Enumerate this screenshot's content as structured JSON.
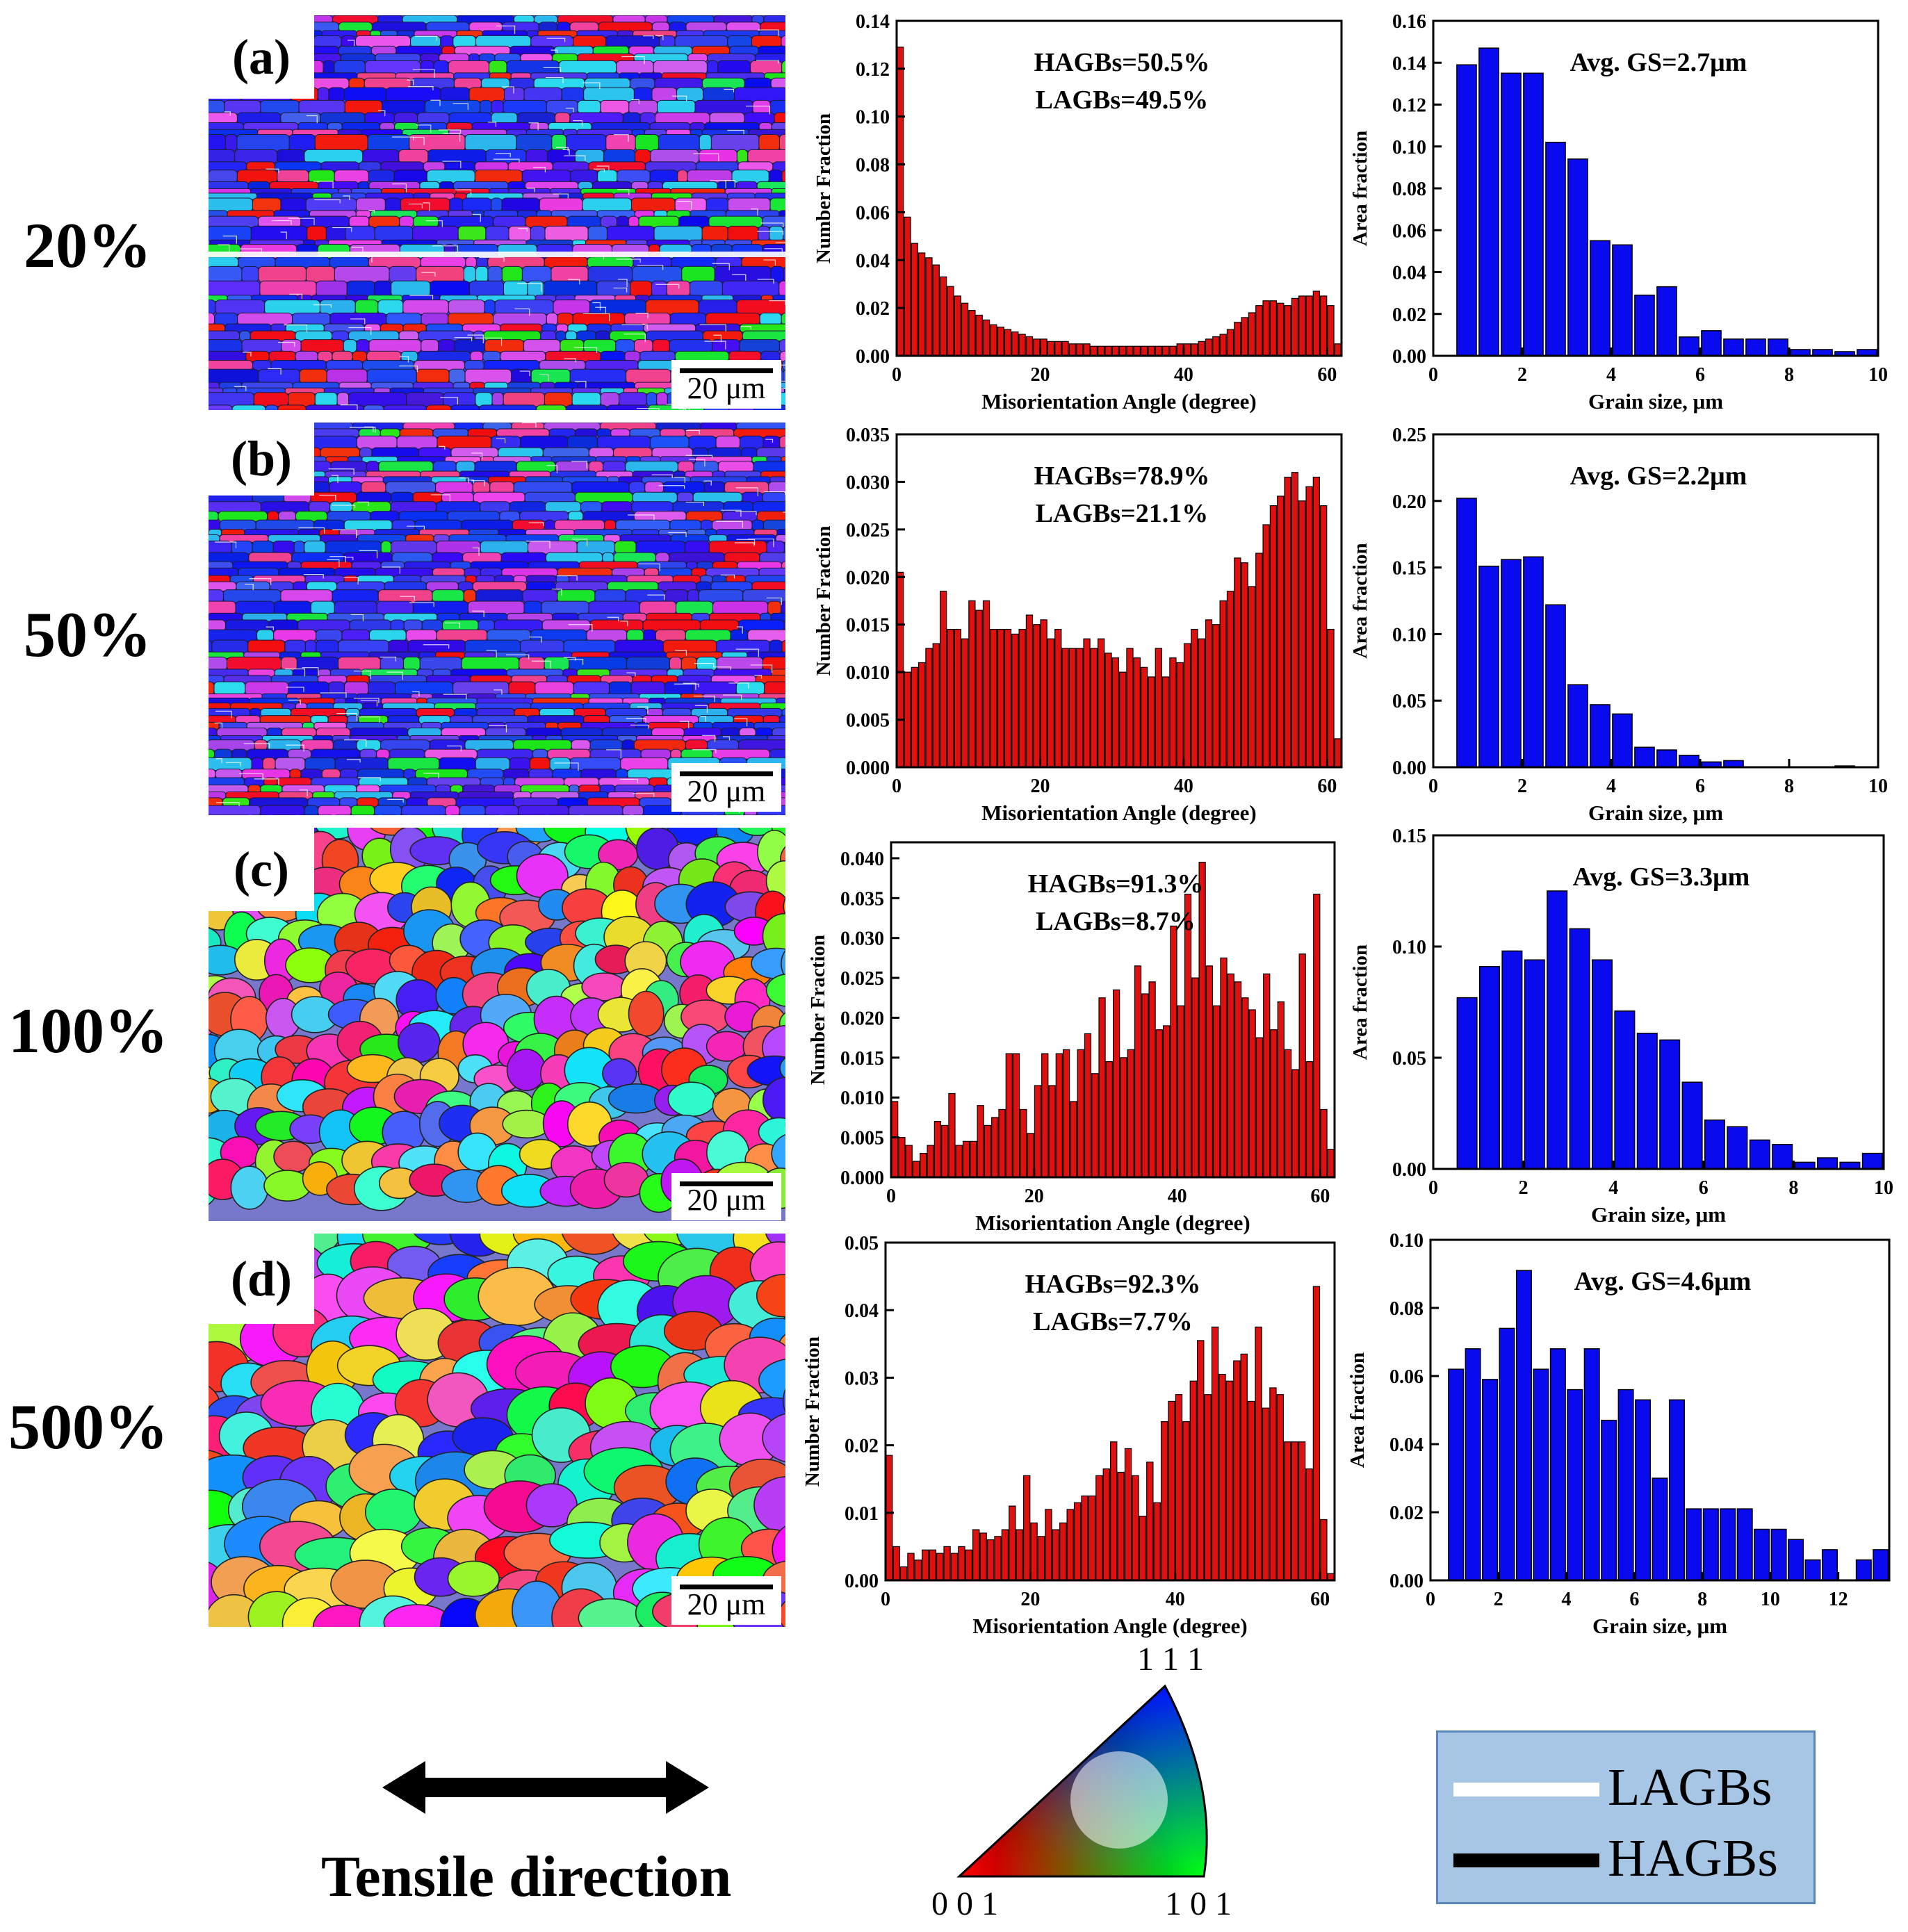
{
  "strain_labels": [
    "20%",
    "50%",
    "100%",
    "500%"
  ],
  "panel_labels": [
    "(a)",
    "(b)",
    "(c)",
    "(d)"
  ],
  "scale_bar_label": "20 μm",
  "colors": {
    "misorientation_bar": "#e01010",
    "grain_bar": "#0a0aee",
    "legend_bg": "#a7c6e6"
  },
  "bottom": {
    "tensile_direction_label": "Tensile direction",
    "ipf_labels": {
      "top": "1 1 1",
      "bottom_left": "0 0 1",
      "bottom_right": "1 0 1"
    },
    "legend": {
      "lagbs": "LAGBs",
      "hagbs": "HAGBs"
    }
  },
  "chart_data": [
    {
      "id": "a-misorientation",
      "type": "bar",
      "xlabel": "Misorientation Angle (degree)",
      "ylabel": "Number Fraction",
      "xlim": [
        0,
        62
      ],
      "ylim": [
        0,
        0.14
      ],
      "xticks": [
        0,
        20,
        40,
        60
      ],
      "yticks": [
        0.0,
        0.02,
        0.04,
        0.06,
        0.08,
        0.1,
        0.12,
        0.14
      ],
      "ytick_decimals": 2,
      "bin_width": 1,
      "annotation": [
        "HAGBs=50.5%",
        "LAGBs=49.5%"
      ],
      "values": [
        0.129,
        0.058,
        0.047,
        0.043,
        0.041,
        0.038,
        0.033,
        0.029,
        0.025,
        0.022,
        0.019,
        0.017,
        0.015,
        0.013,
        0.012,
        0.011,
        0.01,
        0.009,
        0.008,
        0.007,
        0.007,
        0.006,
        0.006,
        0.006,
        0.005,
        0.005,
        0.005,
        0.004,
        0.004,
        0.004,
        0.004,
        0.004,
        0.004,
        0.004,
        0.004,
        0.004,
        0.004,
        0.004,
        0.004,
        0.005,
        0.005,
        0.005,
        0.006,
        0.007,
        0.008,
        0.009,
        0.011,
        0.014,
        0.016,
        0.018,
        0.021,
        0.023,
        0.023,
        0.022,
        0.021,
        0.024,
        0.025,
        0.025,
        0.027,
        0.025,
        0.021,
        0.005
      ]
    },
    {
      "id": "a-grain-size",
      "type": "bar",
      "xlabel": "Grain size, μm",
      "ylabel": "Area fraction",
      "xlim": [
        0,
        10
      ],
      "ylim": [
        0,
        0.16
      ],
      "xticks": [
        0,
        2,
        4,
        6,
        8,
        10
      ],
      "yticks": [
        0.0,
        0.02,
        0.04,
        0.06,
        0.08,
        0.1,
        0.12,
        0.14,
        0.16
      ],
      "ytick_decimals": 2,
      "bin_width": 0.5,
      "annotation": [
        "Avg. GS=2.7μm"
      ],
      "x": [
        0.75,
        1.25,
        1.75,
        2.25,
        2.75,
        3.25,
        3.75,
        4.25,
        4.75,
        5.25,
        5.75,
        6.25,
        6.75,
        7.25,
        7.75,
        8.25,
        8.75,
        9.25,
        9.75
      ],
      "values": [
        0.139,
        0.147,
        0.135,
        0.135,
        0.102,
        0.094,
        0.055,
        0.053,
        0.029,
        0.033,
        0.009,
        0.012,
        0.008,
        0.008,
        0.008,
        0.003,
        0.003,
        0.002,
        0.003
      ]
    },
    {
      "id": "b-misorientation",
      "type": "bar",
      "xlabel": "Misorientation Angle (degree)",
      "ylabel": "Number Fraction",
      "xlim": [
        0,
        62
      ],
      "ylim": [
        0,
        0.035
      ],
      "xticks": [
        0,
        20,
        40,
        60
      ],
      "yticks": [
        0.0,
        0.005,
        0.01,
        0.015,
        0.02,
        0.025,
        0.03,
        0.035
      ],
      "ytick_decimals": 3,
      "bin_width": 1,
      "annotation": [
        "HAGBs=78.9%",
        "LAGBs=21.1%"
      ],
      "values": [
        0.0205,
        0.01,
        0.0105,
        0.011,
        0.0125,
        0.013,
        0.0185,
        0.0145,
        0.0145,
        0.0135,
        0.0175,
        0.0165,
        0.0175,
        0.0145,
        0.0145,
        0.0145,
        0.014,
        0.0145,
        0.016,
        0.015,
        0.0155,
        0.0135,
        0.0145,
        0.0125,
        0.0125,
        0.0125,
        0.0135,
        0.0125,
        0.0135,
        0.012,
        0.0115,
        0.01,
        0.0125,
        0.0115,
        0.0105,
        0.0095,
        0.0125,
        0.0095,
        0.0115,
        0.011,
        0.013,
        0.0145,
        0.0135,
        0.0155,
        0.015,
        0.0175,
        0.0185,
        0.022,
        0.0215,
        0.019,
        0.0225,
        0.0255,
        0.0275,
        0.0285,
        0.0305,
        0.031,
        0.028,
        0.0295,
        0.0305,
        0.0275,
        0.0145,
        0.003
      ]
    },
    {
      "id": "b-grain-size",
      "type": "bar",
      "xlabel": "Grain size, μm",
      "ylabel": "Area fraction",
      "xlim": [
        0,
        10
      ],
      "ylim": [
        0,
        0.25
      ],
      "xticks": [
        0,
        2,
        4,
        6,
        8,
        10
      ],
      "yticks": [
        0.0,
        0.05,
        0.1,
        0.15,
        0.2,
        0.25
      ],
      "ytick_decimals": 2,
      "bin_width": 0.5,
      "annotation": [
        "Avg. GS=2.2μm"
      ],
      "x": [
        0.75,
        1.25,
        1.75,
        2.25,
        2.75,
        3.25,
        3.75,
        4.25,
        4.75,
        5.25,
        5.75,
        6.25,
        6.75,
        7.25,
        7.75,
        8.25,
        8.75,
        9.25,
        9.75
      ],
      "values": [
        0.202,
        0.151,
        0.156,
        0.158,
        0.122,
        0.062,
        0.047,
        0.04,
        0.015,
        0.013,
        0.009,
        0.004,
        0.005,
        0,
        0,
        0,
        0,
        0.001,
        0
      ]
    },
    {
      "id": "c-misorientation",
      "type": "bar",
      "xlabel": "Misorientation Angle (degree)",
      "ylabel": "Number Fraction",
      "xlim": [
        0,
        62
      ],
      "ylim": [
        0,
        0.042
      ],
      "xticks": [
        0,
        20,
        40,
        60
      ],
      "yticks": [
        0.0,
        0.005,
        0.01,
        0.015,
        0.02,
        0.025,
        0.03,
        0.035,
        0.04
      ],
      "ytick_decimals": 3,
      "bin_width": 1,
      "annotation": [
        "HAGBs=91.3%",
        "LAGBs=8.7%"
      ],
      "values": [
        0.0095,
        0.005,
        0.004,
        0.002,
        0.003,
        0.004,
        0.007,
        0.0065,
        0.0105,
        0.004,
        0.0045,
        0.0045,
        0.009,
        0.0065,
        0.0075,
        0.0085,
        0.0155,
        0.0155,
        0.0085,
        0.0055,
        0.0115,
        0.0155,
        0.0115,
        0.0155,
        0.016,
        0.0095,
        0.016,
        0.018,
        0.013,
        0.0225,
        0.0145,
        0.0235,
        0.015,
        0.016,
        0.0265,
        0.023,
        0.0245,
        0.0185,
        0.019,
        0.0315,
        0.0215,
        0.0355,
        0.025,
        0.0395,
        0.0265,
        0.0215,
        0.0275,
        0.0255,
        0.0245,
        0.0225,
        0.021,
        0.0175,
        0.0255,
        0.0185,
        0.022,
        0.016,
        0.0135,
        0.028,
        0.0145,
        0.0355,
        0.0085,
        0.0035
      ]
    },
    {
      "id": "c-grain-size",
      "type": "bar",
      "xlabel": "Grain size, μm",
      "ylabel": "Area fraction",
      "xlim": [
        0,
        10
      ],
      "ylim": [
        0,
        0.15
      ],
      "xticks": [
        0,
        2,
        4,
        6,
        8,
        10
      ],
      "yticks": [
        0.0,
        0.05,
        0.1,
        0.15
      ],
      "ytick_decimals": 2,
      "bin_width": 0.5,
      "annotation": [
        "Avg. GS=3.3μm"
      ],
      "x": [
        0.75,
        1.25,
        1.75,
        2.25,
        2.75,
        3.25,
        3.75,
        4.25,
        4.75,
        5.25,
        5.75,
        6.25,
        6.75,
        7.25,
        7.75,
        8.25,
        8.75,
        9.25,
        9.75
      ],
      "values": [
        0.077,
        0.091,
        0.098,
        0.094,
        0.125,
        0.108,
        0.094,
        0.071,
        0.061,
        0.058,
        0.039,
        0.022,
        0.019,
        0.013,
        0.011,
        0.003,
        0.005,
        0.003,
        0.007
      ]
    },
    {
      "id": "d-misorientation",
      "type": "bar",
      "xlabel": "Misorientation Angle (degree)",
      "ylabel": "Number Fraction",
      "xlim": [
        0,
        62
      ],
      "ylim": [
        0,
        0.05
      ],
      "xticks": [
        0,
        20,
        40,
        60
      ],
      "yticks": [
        0.0,
        0.01,
        0.02,
        0.03,
        0.04,
        0.05
      ],
      "ytick_decimals": 2,
      "bin_width": 1,
      "annotation": [
        "HAGBs=92.3%",
        "LAGBs=7.7%"
      ],
      "values": [
        0.0185,
        0.005,
        0.002,
        0.004,
        0.003,
        0.0045,
        0.0045,
        0.004,
        0.005,
        0.004,
        0.005,
        0.0045,
        0.0075,
        0.007,
        0.006,
        0.0065,
        0.0075,
        0.011,
        0.0075,
        0.0155,
        0.0085,
        0.0065,
        0.0105,
        0.0075,
        0.0085,
        0.0105,
        0.0115,
        0.0125,
        0.0125,
        0.0155,
        0.0165,
        0.0205,
        0.016,
        0.0195,
        0.0155,
        0.0095,
        0.0175,
        0.0115,
        0.0235,
        0.0265,
        0.0275,
        0.0235,
        0.0295,
        0.0355,
        0.0275,
        0.0375,
        0.0305,
        0.0295,
        0.0325,
        0.0335,
        0.0265,
        0.0375,
        0.0255,
        0.0285,
        0.0275,
        0.0205,
        0.0205,
        0.0205,
        0.0165,
        0.0435,
        0.009,
        0.001
      ]
    },
    {
      "id": "d-grain-size",
      "type": "bar",
      "xlabel": "Grain size, μm",
      "ylabel": "Area fraction",
      "xlim": [
        0,
        13.5
      ],
      "ylim": [
        0,
        0.1
      ],
      "xticks": [
        0,
        2,
        4,
        6,
        8,
        10,
        12
      ],
      "yticks": [
        0.0,
        0.02,
        0.04,
        0.06,
        0.08,
        0.1
      ],
      "ytick_decimals": 2,
      "bin_width": 0.5,
      "annotation": [
        "Avg. GS=4.6μm"
      ],
      "x": [
        0.75,
        1.25,
        1.75,
        2.25,
        2.75,
        3.25,
        3.75,
        4.25,
        4.75,
        5.25,
        5.75,
        6.25,
        6.75,
        7.25,
        7.75,
        8.25,
        8.75,
        9.25,
        9.75,
        10.25,
        10.75,
        11.25,
        11.75,
        12.25,
        12.75,
        13.25
      ],
      "values": [
        0.062,
        0.068,
        0.059,
        0.074,
        0.091,
        0.062,
        0.068,
        0.056,
        0.068,
        0.047,
        0.056,
        0.053,
        0.03,
        0.053,
        0.021,
        0.021,
        0.021,
        0.021,
        0.015,
        0.015,
        0.012,
        0.006,
        0.009,
        0,
        0.006,
        0.009
      ]
    }
  ]
}
